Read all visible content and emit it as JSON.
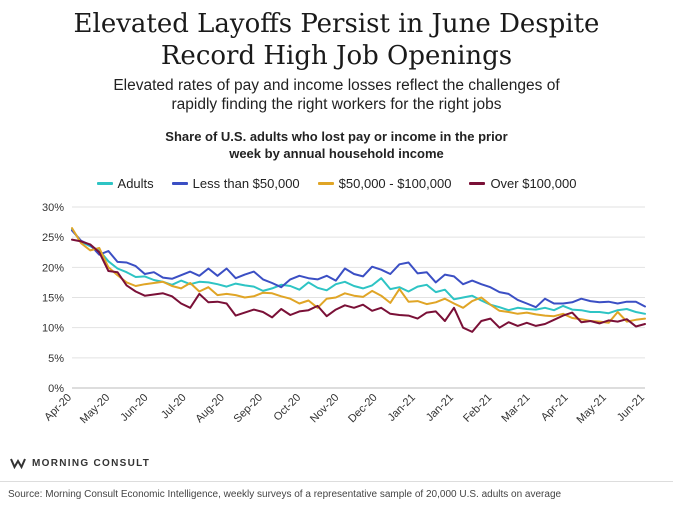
{
  "header": {
    "title_line1": "Elevated Layoffs Persist in June Despite",
    "title_line2": "Record High Job Openings",
    "subtitle_line1": "Elevated rates of pay and income losses reflect the challenges of",
    "subtitle_line2": "rapidly finding the right workers for the right jobs"
  },
  "footer": {
    "brand": "MORNING CONSULT",
    "source": "Source: Morning Consult Economic Intelligence, weekly surveys of a representative sample of 20,000 U.S. adults on average"
  },
  "colors": {
    "adults": "#2ec4c4",
    "lt50": "#3b4fc4",
    "mid": "#e0a526",
    "over100": "#7a1037"
  },
  "chart_data": {
    "type": "line",
    "title_line1": "Share of U.S. adults who lost pay or income in the prior",
    "title_line2": "week by annual household income",
    "ylim": [
      0,
      30
    ],
    "y_ticks": [
      "0%",
      "5%",
      "10%",
      "15%",
      "20%",
      "25%",
      "30%"
    ],
    "x_tick_labels": [
      "Apr-20",
      "May-20",
      "Jun-20",
      "Jul-20",
      "Aug-20",
      "Sep-20",
      "Oct-20",
      "Nov-20",
      "Dec-20",
      "Jan-21",
      "Jan-21",
      "Feb-21",
      "Mar-21",
      "Apr-21",
      "May-21",
      "Jun-21"
    ],
    "grid": "horizontal",
    "legend_position": "top",
    "series": [
      {
        "name": "Adults",
        "color_key": "adults",
        "values": [
          26.3,
          24.2,
          23.5,
          22.8,
          21.0,
          19.8,
          19.2,
          18.4,
          18.5,
          17.9,
          17.6,
          17.1,
          17.8,
          17.2,
          17.6,
          17.5,
          17.2,
          16.8,
          17.3,
          17.0,
          16.8,
          16.1,
          16.5,
          17.1,
          16.9,
          16.3,
          17.5,
          16.6,
          16.2,
          17.2,
          17.6,
          16.9,
          16.5,
          17.0,
          18.2,
          16.4,
          16.7,
          16.0,
          16.8,
          17.1,
          15.9,
          16.3,
          14.7,
          15.0,
          15.3,
          14.5,
          13.8,
          13.4,
          12.9,
          13.3,
          13.1,
          13.0,
          13.3,
          12.9,
          13.6,
          13.0,
          12.9,
          12.6,
          12.6,
          12.4,
          12.9,
          13.1,
          12.6,
          12.3
        ]
      },
      {
        "name": "Less than $50,000",
        "color_key": "lt50",
        "values": [
          26.1,
          24.4,
          23.7,
          22.1,
          22.7,
          20.9,
          20.8,
          20.2,
          18.9,
          19.2,
          18.3,
          18.1,
          18.7,
          19.3,
          18.6,
          19.8,
          18.6,
          19.8,
          18.2,
          18.8,
          19.3,
          18.0,
          17.4,
          16.7,
          18.0,
          18.6,
          18.2,
          18.0,
          18.6,
          17.8,
          19.8,
          18.9,
          18.5,
          20.1,
          19.6,
          18.9,
          20.5,
          20.8,
          19.0,
          19.2,
          17.5,
          18.8,
          18.5,
          17.2,
          17.8,
          17.2,
          16.7,
          15.9,
          15.6,
          14.6,
          14.0,
          13.4,
          14.8,
          14.0,
          14.0,
          14.2,
          14.8,
          14.4,
          14.2,
          14.3,
          14.0,
          14.3,
          14.3,
          13.5
        ]
      },
      {
        "name": "$50,000 - $100,000",
        "color_key": "mid",
        "values": [
          26.5,
          24.0,
          22.8,
          23.2,
          20.0,
          18.7,
          17.5,
          16.9,
          17.2,
          17.4,
          17.6,
          16.9,
          16.5,
          17.4,
          16.0,
          16.7,
          15.4,
          15.6,
          15.4,
          15.0,
          15.2,
          15.8,
          15.7,
          15.2,
          14.8,
          14.0,
          14.5,
          13.3,
          14.8,
          15.0,
          15.7,
          15.3,
          15.1,
          16.1,
          15.3,
          14.1,
          16.4,
          14.3,
          14.4,
          13.9,
          14.2,
          14.8,
          14.0,
          13.3,
          14.4,
          15.0,
          13.8,
          12.8,
          12.6,
          12.3,
          12.5,
          12.2,
          12.0,
          11.9,
          12.3,
          11.6,
          11.4,
          11.1,
          11.0,
          10.8,
          12.6,
          11.0,
          11.3,
          11.5
        ]
      },
      {
        "name": "Over $100,000",
        "color_key": "over100",
        "values": [
          24.6,
          24.3,
          23.8,
          22.5,
          19.4,
          19.2,
          17.0,
          16.0,
          15.3,
          15.5,
          15.7,
          15.2,
          14.0,
          13.3,
          15.6,
          14.2,
          14.3,
          14.0,
          12.0,
          12.5,
          13.0,
          12.6,
          11.7,
          13.1,
          12.1,
          12.7,
          12.9,
          13.6,
          11.9,
          13.0,
          13.7,
          13.3,
          13.8,
          12.8,
          13.3,
          12.3,
          12.1,
          12.0,
          11.5,
          12.5,
          12.7,
          11.1,
          13.3,
          10.0,
          9.3,
          11.1,
          11.5,
          10.0,
          10.9,
          10.3,
          10.8,
          10.3,
          10.6,
          11.3,
          12.0,
          12.5,
          10.9,
          11.1,
          10.7,
          11.2,
          11.0,
          11.4,
          10.2,
          10.6
        ]
      }
    ]
  }
}
